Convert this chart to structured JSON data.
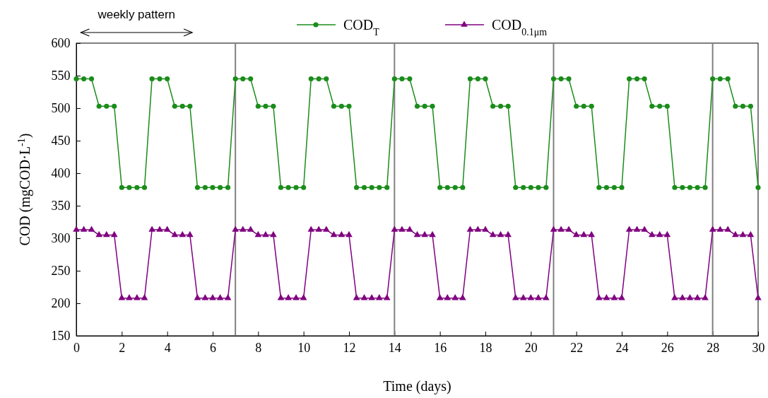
{
  "chart_data": {
    "type": "line",
    "xlabel": "Time (days)",
    "ylabel": "COD (mgCOD·L$^{-1}$)",
    "annotations": [
      "weekly pattern"
    ],
    "x": [
      0,
      0.33,
      0.67,
      1,
      1.33,
      1.67,
      2,
      2.33,
      2.67,
      3,
      3.33,
      3.67,
      4,
      4.33,
      4.67,
      5,
      5.33,
      5.67,
      6,
      6.33,
      6.67,
      7,
      7.33,
      7.67,
      8,
      8.33,
      8.67,
      9,
      9.33,
      9.67,
      10,
      10.33,
      10.67,
      11,
      11.33,
      11.67,
      12,
      12.33,
      12.67,
      13,
      13.33,
      13.67,
      14,
      14.33,
      14.67,
      15,
      15.33,
      15.67,
      16,
      16.33,
      16.67,
      17,
      17.33,
      17.67,
      18,
      18.33,
      18.67,
      19,
      19.33,
      19.67,
      20,
      20.33,
      20.67,
      21,
      21.33,
      21.67,
      22,
      22.33,
      22.67,
      23,
      23.33,
      23.67,
      24,
      24.33,
      24.67,
      25,
      25.33,
      25.67,
      26,
      26.33,
      26.67,
      27,
      27.33,
      27.67,
      28,
      28.33,
      28.67,
      29,
      29.33,
      29.67,
      30
    ],
    "series": [
      {
        "name": "COD$_{T}$",
        "color": "#1a8c1a",
        "marker": "circle",
        "values": [
          545,
          545,
          545,
          503,
          503,
          503,
          378,
          378,
          378,
          378,
          545,
          545,
          545,
          503,
          503,
          503,
          378,
          378,
          378,
          378,
          378,
          545,
          545,
          545,
          503,
          503,
          503,
          378,
          378,
          378,
          378,
          545,
          545,
          545,
          503,
          503,
          503,
          378,
          378,
          378,
          378,
          378,
          545,
          545,
          545,
          503,
          503,
          503,
          378,
          378,
          378,
          378,
          545,
          545,
          545,
          503,
          503,
          503,
          378,
          378,
          378,
          378,
          378,
          545,
          545,
          545,
          503,
          503,
          503,
          378,
          378,
          378,
          378,
          545,
          545,
          545,
          503,
          503,
          503,
          378,
          378,
          378,
          378,
          378,
          545,
          545,
          545,
          503,
          503,
          503,
          378
        ]
      },
      {
        "name": "COD$_{0.1μm}$",
        "color": "#800080",
        "marker": "triangle",
        "values": [
          313,
          313,
          313,
          305,
          305,
          305,
          208,
          208,
          208,
          208,
          313,
          313,
          313,
          305,
          305,
          305,
          208,
          208,
          208,
          208,
          208,
          313,
          313,
          313,
          305,
          305,
          305,
          208,
          208,
          208,
          208,
          313,
          313,
          313,
          305,
          305,
          305,
          208,
          208,
          208,
          208,
          208,
          313,
          313,
          313,
          305,
          305,
          305,
          208,
          208,
          208,
          208,
          313,
          313,
          313,
          305,
          305,
          305,
          208,
          208,
          208,
          208,
          208,
          313,
          313,
          313,
          305,
          305,
          305,
          208,
          208,
          208,
          208,
          313,
          313,
          313,
          305,
          305,
          305,
          208,
          208,
          208,
          208,
          208,
          313,
          313,
          313,
          305,
          305,
          305,
          208
        ]
      }
    ],
    "xlim": [
      0,
      30
    ],
    "xticks": [
      0,
      2,
      4,
      6,
      8,
      10,
      12,
      14,
      16,
      18,
      20,
      22,
      24,
      26,
      28,
      30
    ],
    "ylim": [
      150,
      600
    ],
    "yticks": [
      150,
      200,
      250,
      300,
      350,
      400,
      450,
      500,
      550,
      600
    ],
    "ref_lines": [
      {
        "axis": "x",
        "value": 7,
        "color": "#808080"
      },
      {
        "axis": "x",
        "value": 14,
        "color": "#808080"
      },
      {
        "axis": "x",
        "value": 21,
        "color": "#808080"
      },
      {
        "axis": "x",
        "value": 28,
        "color": "#808080"
      }
    ],
    "grid": false,
    "legend": "top",
    "line_style": "solid"
  }
}
